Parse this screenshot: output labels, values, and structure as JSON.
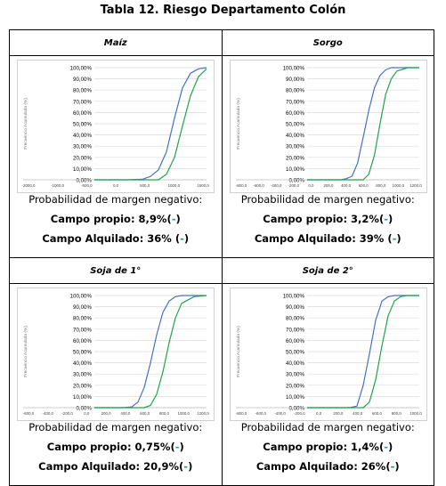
{
  "title": "Tabla 12. Riesgo Departamento Colón",
  "charts": [
    {
      "header": "Maíz",
      "ylabel": "Frecuencia Acumulada (%)",
      "y_ticks": [
        "0,00%",
        "10,00%",
        "20,00%",
        "30,00%",
        "40,00%",
        "50,00%",
        "60,00%",
        "70,00%",
        "80,00%",
        "90,00%",
        "100,00%"
      ],
      "x_ticks": [
        "-2000,0",
        "-1000,0",
        "-500,0",
        "0,0",
        "500,0",
        "1000,0",
        "1500,0"
      ],
      "prob_label": "Probabilidad de margen negativo:",
      "line1": "Campo propio: 8,9%(",
      "line1_marker": "-",
      "line1_close": ")",
      "line2": "Campo Alquilado: 36% (",
      "line2_marker": "-",
      "line2_close": ")"
    },
    {
      "header": "Sorgo",
      "ylabel": "Frecuencia Acumulada (%)",
      "y_ticks": [
        "0,00%",
        "10,00%",
        "20,00%",
        "30,00%",
        "40,00%",
        "50,00%",
        "60,00%",
        "70,00%",
        "80,00%",
        "90,00%",
        "100,00%"
      ],
      "x_ticks": [
        "-800,0",
        "-600,0",
        "-400,0",
        "-200,0",
        "0,0",
        "200,0",
        "400,0",
        "600,0",
        "800,0",
        "1000,0",
        "1200,0"
      ],
      "prob_label": "Probabilidad de margen negativo:",
      "line1": "Campo propio: 3,2%(",
      "line1_marker": "-",
      "line1_close": ")",
      "line2": "Campo Alquilado: 39% (",
      "line2_marker": "-",
      "line2_close": ")"
    },
    {
      "header": "Soja de 1°",
      "ylabel": "Frecuencia Acumulada (%)",
      "y_ticks": [
        "0,00%",
        "10,00%",
        "20,00%",
        "30,00%",
        "40,00%",
        "50,00%",
        "60,00%",
        "70,00%",
        "80,00%",
        "90,00%",
        "100,00%"
      ],
      "x_ticks": [
        "-600,0",
        "-400,0",
        "-200,0",
        "0,0",
        "200,0",
        "400,0",
        "600,0",
        "800,0",
        "1000,0",
        "1200,0"
      ],
      "prob_label": "Probabilidad de margen negativo:",
      "line1": "Campo propio: 0,75%(",
      "line1_marker": "-",
      "line1_close": ")",
      "line2": "Campo Alquilado: 20,9%(",
      "line2_marker": "-",
      "line2_close": ")"
    },
    {
      "header": "Soja de 2°",
      "ylabel": "Frecuencia Acumulada (%)",
      "y_ticks": [
        "0,00%",
        "10,00%",
        "20,00%",
        "30,00%",
        "40,00%",
        "50,00%",
        "60,00%",
        "70,00%",
        "80,00%",
        "90,00%",
        "100,00%"
      ],
      "x_ticks": [
        "-800,0",
        "-600,0",
        "-400,0",
        "-200,0",
        "0,0",
        "200,0",
        "400,0",
        "600,0",
        "800,0",
        "1000,0"
      ],
      "prob_label": "Probabilidad de margen negativo:",
      "line1": "Campo propio: 1,4%(",
      "line1_marker": "-",
      "line1_close": ")",
      "line2": "Campo Alquilado: 26%(",
      "line2_marker": "-",
      "line2_close": ")"
    }
  ],
  "chart_data": [
    {
      "type": "line",
      "ylim": [
        0,
        100
      ],
      "xlim": [
        -2000,
        1500
      ],
      "series": [
        {
          "color": "#4472c4",
          "x": [
            -2000,
            -1000,
            -500,
            -250,
            0,
            250,
            500,
            750,
            1000,
            1250,
            1500
          ],
          "values": [
            0,
            0,
            0.5,
            3,
            8.9,
            25,
            55,
            82,
            95,
            99,
            100
          ]
        },
        {
          "color": "#21a34a",
          "x": [
            -2000,
            -1000,
            -500,
            -250,
            0,
            250,
            500,
            750,
            1000,
            1250,
            1500
          ],
          "values": [
            0,
            0,
            0,
            0,
            0,
            5,
            20,
            48,
            75,
            92,
            99
          ]
        }
      ]
    },
    {
      "type": "line",
      "ylim": [
        0,
        100
      ],
      "xlim": [
        -800,
        1200
      ],
      "series": [
        {
          "color": "#4472c4",
          "x": [
            -800,
            -400,
            -200,
            -100,
            0,
            100,
            200,
            300,
            400,
            500,
            600,
            700,
            800,
            1000,
            1200
          ],
          "values": [
            0,
            0,
            0,
            1,
            3.2,
            15,
            38,
            62,
            82,
            93,
            98,
            100,
            100,
            100,
            100
          ]
        },
        {
          "color": "#21a34a",
          "x": [
            -800,
            -400,
            -200,
            -100,
            0,
            100,
            200,
            300,
            400,
            500,
            600,
            700,
            800,
            1000,
            1200
          ],
          "values": [
            0,
            0,
            0,
            0,
            0,
            0,
            0,
            5,
            22,
            50,
            76,
            90,
            97,
            100,
            100
          ]
        }
      ]
    },
    {
      "type": "line",
      "ylim": [
        0,
        100
      ],
      "xlim": [
        -600,
        1200
      ],
      "series": [
        {
          "color": "#4472c4",
          "x": [
            -600,
            -200,
            -100,
            0,
            100,
            200,
            300,
            400,
            500,
            600,
            700,
            800,
            1000,
            1200
          ],
          "values": [
            0,
            0,
            0.2,
            0.75,
            5,
            18,
            40,
            65,
            85,
            95,
            99,
            100,
            100,
            100
          ]
        },
        {
          "color": "#21a34a",
          "x": [
            -600,
            -200,
            -100,
            0,
            100,
            200,
            300,
            400,
            500,
            600,
            700,
            800,
            1000,
            1200
          ],
          "values": [
            0,
            0,
            0,
            0,
            0,
            0,
            2,
            12,
            32,
            58,
            80,
            93,
            99,
            100
          ]
        }
      ]
    },
    {
      "type": "line",
      "ylim": [
        0,
        100
      ],
      "xlim": [
        -800,
        1000
      ],
      "series": [
        {
          "color": "#4472c4",
          "x": [
            -800,
            -400,
            -200,
            -100,
            0,
            100,
            200,
            300,
            400,
            500,
            600,
            700,
            800,
            1000
          ],
          "values": [
            0,
            0,
            0,
            0.2,
            1.4,
            20,
            48,
            78,
            95,
            99,
            100,
            100,
            100,
            100
          ]
        },
        {
          "color": "#21a34a",
          "x": [
            -800,
            -400,
            -200,
            -100,
            0,
            100,
            200,
            300,
            400,
            500,
            600,
            700,
            800,
            1000
          ],
          "values": [
            0,
            0,
            0,
            0,
            0,
            0,
            5,
            25,
            55,
            82,
            95,
            99,
            100,
            100
          ]
        }
      ]
    }
  ]
}
